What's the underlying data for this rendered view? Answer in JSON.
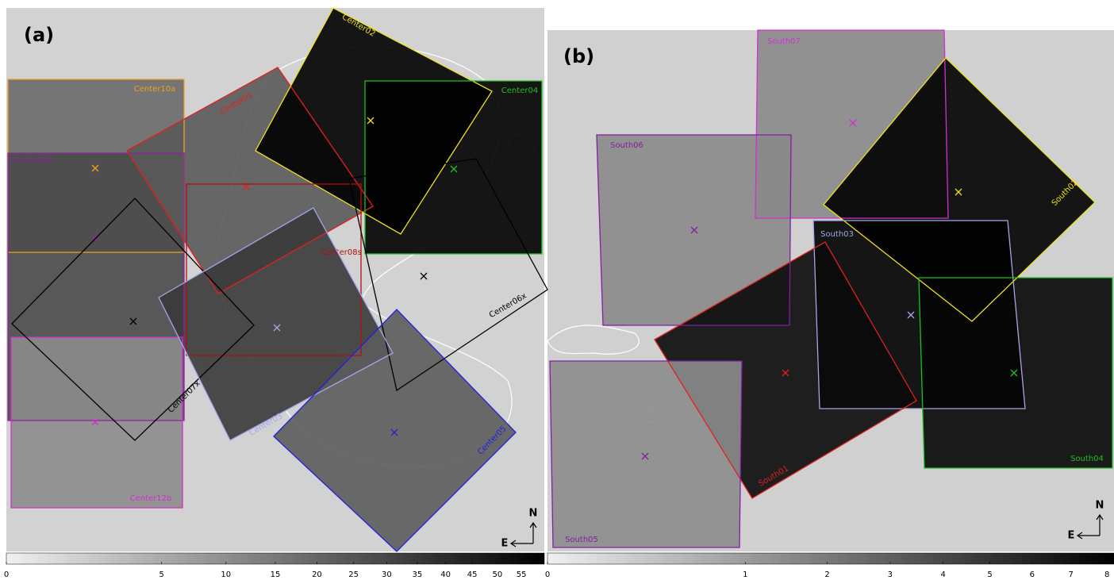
{
  "panels": [
    {
      "label": "(a)",
      "fields": [
        {
          "name": "Center10a",
          "color": "#f0a020"
        },
        {
          "name": "Center12a",
          "color": "#9020a0"
        },
        {
          "name": "Center12b",
          "color": "#d030d0"
        },
        {
          "name": "Center01",
          "color": "#e02020"
        },
        {
          "name": "Center02",
          "color": "#f0e020"
        },
        {
          "name": "Center04",
          "color": "#20c020"
        },
        {
          "name": "Center08s",
          "color": "#b01010"
        },
        {
          "name": "Center06x",
          "color": "#000000"
        },
        {
          "name": "Center07x",
          "color": "#000000"
        },
        {
          "name": "Center03",
          "color": "#a0a8e8"
        },
        {
          "name": "Center05",
          "color": "#2020e0"
        }
      ],
      "compass": {
        "north": "N",
        "east": "E"
      },
      "colorbar": {
        "scale": "sqrt",
        "lim": [
          0,
          60
        ],
        "ticks": [
          0,
          5,
          10,
          15,
          20,
          25,
          30,
          35,
          40,
          45,
          50,
          55
        ]
      }
    },
    {
      "label": "(b)",
      "fields": [
        {
          "name": "South07",
          "color": "#d030d0"
        },
        {
          "name": "South06",
          "color": "#8020a0"
        },
        {
          "name": "South02",
          "color": "#f0e020"
        },
        {
          "name": "South03",
          "color": "#a0a8e8"
        },
        {
          "name": "South01",
          "color": "#e02020"
        },
        {
          "name": "South04",
          "color": "#20c020"
        },
        {
          "name": "South05",
          "color": "#8020a0"
        }
      ],
      "compass": {
        "north": "N",
        "east": "E"
      },
      "colorbar": {
        "scale": "sqrt",
        "lim": [
          0,
          8.2
        ],
        "ticks": [
          0,
          1,
          2,
          3,
          4,
          5,
          6,
          7,
          8
        ]
      }
    }
  ]
}
